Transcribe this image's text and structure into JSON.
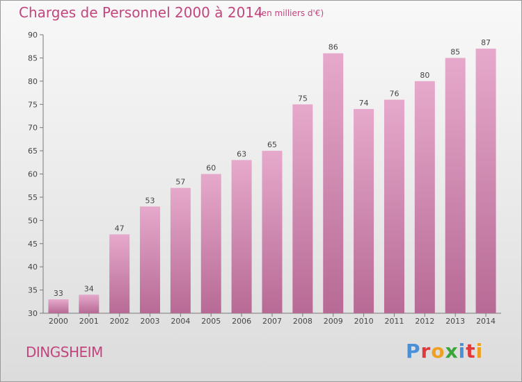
{
  "chart_data": {
    "type": "bar",
    "title": "Charges de Personnel 2000 à 2014",
    "subtitle": "(en milliers d'€)",
    "categories": [
      "2000",
      "2001",
      "2002",
      "2003",
      "2004",
      "2005",
      "2006",
      "2007",
      "2008",
      "2009",
      "2010",
      "2011",
      "2012",
      "2013",
      "2014"
    ],
    "values": [
      33,
      34,
      47,
      53,
      57,
      60,
      63,
      65,
      75,
      86,
      74,
      76,
      80,
      85,
      87
    ],
    "ylim": [
      30,
      90
    ],
    "yticks": [
      30,
      35,
      40,
      45,
      50,
      55,
      60,
      65,
      70,
      75,
      80,
      85,
      90
    ],
    "xlabel": "",
    "ylabel": "",
    "grid": false,
    "bar_color": "#d98cb5"
  },
  "footer": {
    "commune": "DINGSHEIM",
    "logo_text": "Proxiti",
    "logo_colors": [
      "#4a90d9",
      "#e23a3a",
      "#f0a020",
      "#3aa63a",
      "#4a90d9",
      "#e23a3a",
      "#f0a020"
    ]
  }
}
